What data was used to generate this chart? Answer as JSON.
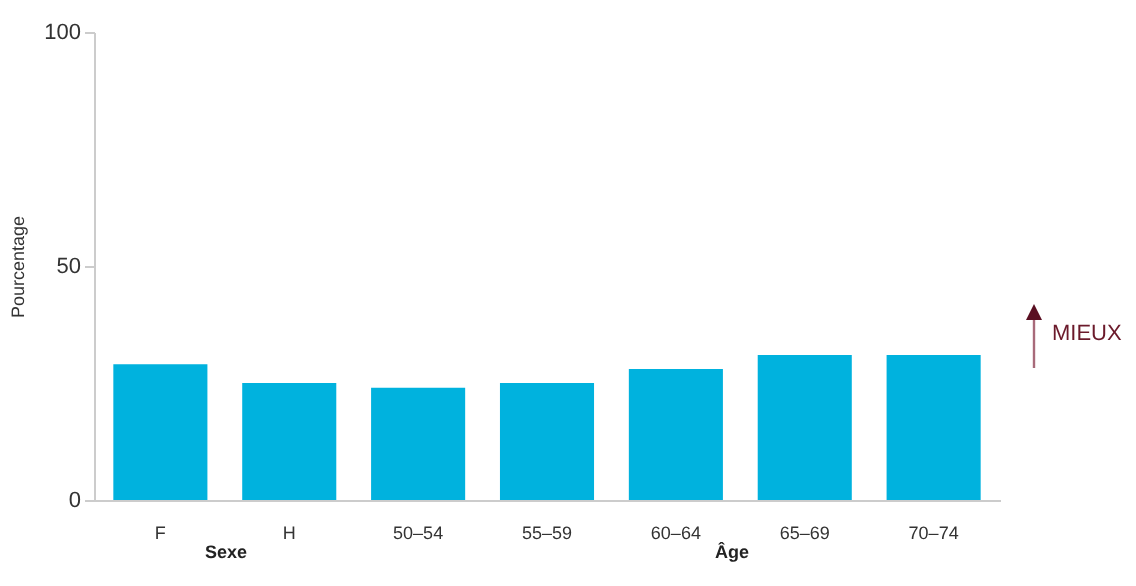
{
  "chart_data": {
    "type": "bar",
    "ylabel": "Pourcentage",
    "categories": [
      "F",
      "H",
      "50–54",
      "55–59",
      "60–64",
      "65–69",
      "70–74"
    ],
    "values": [
      29,
      25,
      24,
      25,
      28,
      31,
      31
    ],
    "color": "#00b2de",
    "ylim": [
      0,
      100
    ],
    "yticks": [
      0,
      50,
      100
    ],
    "grid": false,
    "annotations": [
      "Sexe",
      "Âge",
      "MIEUX"
    ]
  }
}
